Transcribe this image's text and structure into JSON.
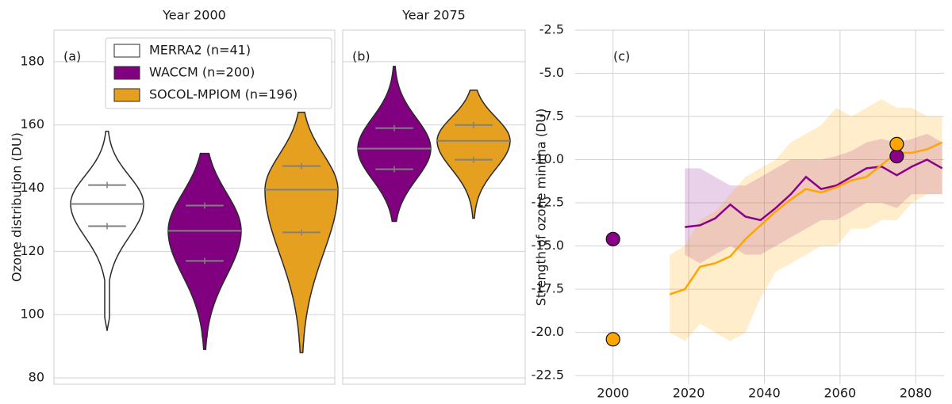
{
  "chart_data": [
    {
      "type": "violin",
      "title": "Year 2000",
      "panel_label": "(a)",
      "y_label": "Ozone distribution (DU)",
      "ylim": [
        78,
        190
      ],
      "yticks": [
        80,
        100,
        120,
        140,
        160,
        180
      ],
      "show_ytick_labels": true,
      "grid": true,
      "legend": "upper left",
      "series": [
        {
          "name": "MERRA2 (n=41)",
          "color": "#ffffff",
          "min": 95,
          "q1": 128,
          "median": 135,
          "q3": 141,
          "max": 158
        },
        {
          "name": "WACCM (n=200)",
          "color": "#800080",
          "min": 89,
          "q1": 117,
          "median": 126.5,
          "q3": 134.5,
          "max": 151
        },
        {
          "name": "SOCOL-MPIOM (n=196)",
          "color": "#e5a020",
          "min": 88,
          "q1": 126,
          "median": 139.5,
          "q3": 147,
          "max": 164
        }
      ]
    },
    {
      "type": "violin",
      "title": "Year 2075",
      "panel_label": "(b)",
      "ylim": [
        78,
        190
      ],
      "yticks": [
        80,
        100,
        120,
        140,
        160,
        180
      ],
      "show_ytick_labels": false,
      "grid": true,
      "series": [
        {
          "color": "#800080",
          "min": 129.5,
          "q1": 146,
          "median": 152.5,
          "q3": 159,
          "max": 178.5
        },
        {
          "color": "#e5a020",
          "min": 130.5,
          "q1": 149,
          "median": 155,
          "q3": 160,
          "max": 171
        }
      ]
    },
    {
      "type": "line",
      "panel_label": "(c)",
      "y_label": "Strength of ozone minima (DU)",
      "xlim": [
        1990,
        2087.5
      ],
      "xticks": [
        2000,
        2020,
        2040,
        2060,
        2080
      ],
      "ylim": [
        -23,
        -2.5
      ],
      "yticks": [
        -2.5,
        {
          "value": -5,
          "label": "-5.0"
        },
        -7.5,
        {
          "value": -10,
          "label": "-10.0"
        },
        -12.5,
        {
          "value": -15,
          "label": "-15.0"
        },
        -17.5,
        {
          "value": -20,
          "label": "-20.0"
        },
        -22.5
      ],
      "grid": true,
      "x": [
        2015,
        2019,
        2023,
        2027,
        2031,
        2035,
        2039,
        2043,
        2047,
        2051,
        2055,
        2059,
        2063,
        2067,
        2071,
        2075,
        2079,
        2083,
        2087
      ],
      "series": [
        {
          "color": "#8b008b",
          "band_alpha": 0.18,
          "values": [
            null,
            -13.9,
            -13.8,
            -13.4,
            -12.6,
            -13.3,
            -13.5,
            -12.8,
            -12.0,
            -11.0,
            -11.7,
            -11.5,
            -11.0,
            -10.5,
            -10.4,
            -10.9,
            -10.4,
            -10.0,
            -10.5
          ],
          "band_low": [
            null,
            -15.5,
            -16.0,
            -15.5,
            -15.0,
            -15.5,
            -15.5,
            -15.0,
            -14.5,
            -14.0,
            -13.5,
            -13.5,
            -13.0,
            -12.5,
            -12.5,
            -12.8,
            -12.0,
            -12.0,
            -12.0
          ],
          "band_high": [
            null,
            -10.5,
            -10.5,
            -11.0,
            -11.5,
            -11.5,
            -11.0,
            -10.5,
            -10.0,
            -10.0,
            -10.0,
            -9.8,
            -9.5,
            -9.0,
            -8.8,
            -9.0,
            -8.8,
            -8.5,
            -9.0
          ],
          "points": {
            "x": [
              2000,
              2075
            ],
            "values": [
              -14.6,
              -9.8
            ]
          }
        },
        {
          "color": "#ffa500",
          "band_alpha": 0.2,
          "values": [
            -17.8,
            -17.5,
            -16.2,
            -16.0,
            -15.6,
            -14.6,
            -13.8,
            -13.0,
            -12.3,
            -11.7,
            -11.9,
            -11.6,
            -11.2,
            -11.0,
            -10.3,
            -9.6,
            -9.6,
            -9.4,
            -9.0
          ],
          "band_low": [
            -20.0,
            -20.5,
            -19.5,
            -20.0,
            -20.5,
            -20.0,
            -18.0,
            -16.5,
            -16.0,
            -15.5,
            -15.0,
            -15.0,
            -14.0,
            -14.0,
            -13.5,
            -13.5,
            -12.5,
            -12.0,
            -12.0
          ],
          "band_high": [
            -15.5,
            -15.0,
            -13.5,
            -13.0,
            -12.0,
            -11.0,
            -10.5,
            -10.0,
            -9.0,
            -8.5,
            -8.0,
            -7.0,
            -7.5,
            -7.0,
            -6.5,
            -7.0,
            -7.0,
            -7.5,
            -7.5
          ],
          "points": {
            "x": [
              2000,
              2075
            ],
            "values": [
              -20.4,
              -9.1
            ]
          }
        }
      ]
    }
  ]
}
